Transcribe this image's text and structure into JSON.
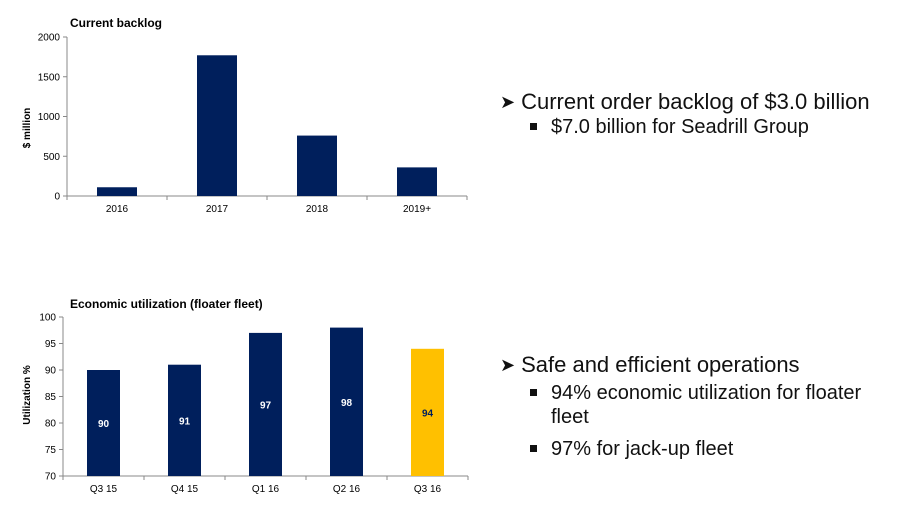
{
  "chart_data": [
    {
      "type": "bar",
      "title": "Current backlog",
      "ylabel": "$ million",
      "xlabel": "",
      "categories": [
        "2016",
        "2017",
        "2018",
        "2019+"
      ],
      "values": [
        110,
        1770,
        760,
        360
      ],
      "ylim": [
        0,
        2000
      ],
      "yticks": [
        0,
        500,
        1000,
        1500,
        2000
      ],
      "colors": [
        "#001f5c",
        "#001f5c",
        "#001f5c",
        "#001f5c"
      ],
      "grid": false,
      "legend": "none"
    },
    {
      "type": "bar",
      "title": "Economic utilization (floater fleet)",
      "ylabel": "Utilization %",
      "xlabel": "",
      "categories": [
        "Q3 15",
        "Q4 15",
        "Q1 16",
        "Q2 16",
        "Q3 16"
      ],
      "values": [
        90,
        91,
        97,
        98,
        94
      ],
      "data_labels": [
        "90",
        "91",
        "97",
        "98",
        "94"
      ],
      "ylim": [
        70,
        100
      ],
      "yticks": [
        70,
        75,
        80,
        85,
        90,
        95,
        100
      ],
      "colors": [
        "#001f5c",
        "#001f5c",
        "#001f5c",
        "#001f5c",
        "#ffc000"
      ],
      "grid": false,
      "legend": "none"
    }
  ],
  "bullets": [
    {
      "main": "Current order backlog of $3.0 billion",
      "subs": [
        "$7.0 billion for Seadrill Group"
      ]
    },
    {
      "main": "Safe and efficient operations",
      "subs": [
        "94% economic utilization for floater fleet",
        "97% for jack-up fleet"
      ]
    }
  ],
  "icons": {
    "main_bullet": "arrow-bullet-icon",
    "sub_bullet": "square-bullet-icon"
  }
}
